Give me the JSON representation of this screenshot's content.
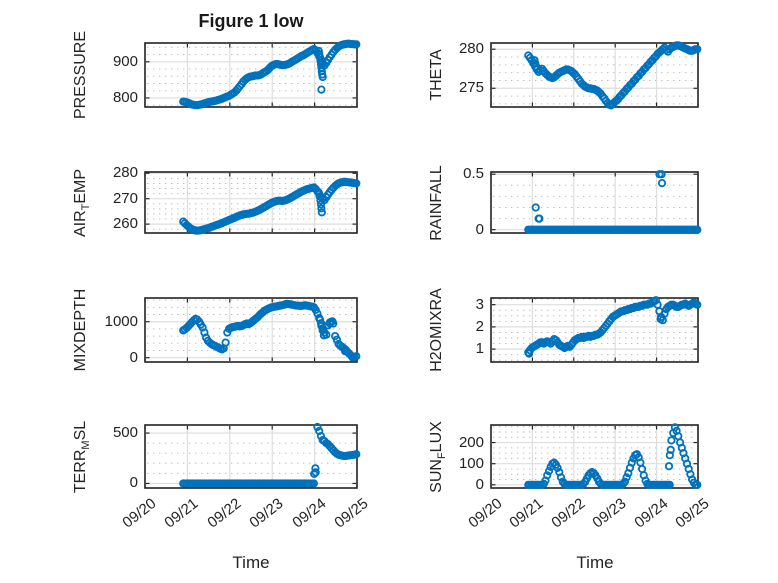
{
  "figure": {
    "title": "Figure 1 low",
    "xlabel": "Time",
    "background": "#ffffff",
    "marker_color": "#0072BD",
    "axis_color": "#222222",
    "tick_color": "#262626",
    "grid_color": "#dedede",
    "minor_grid_color": "#bdbdbd",
    "text_color": "#242424"
  },
  "time_axis": {
    "tick_labels": [
      "09/20",
      "09/21",
      "09/22",
      "09/23",
      "09/24",
      "09/25"
    ],
    "tick_values": [
      0,
      1,
      2,
      3,
      4,
      5
    ],
    "xlim": [
      0,
      5
    ],
    "start_day": 0.9,
    "step_day": 0.041667
  },
  "chart_data": [
    {
      "id": "pressure",
      "type": "scatter",
      "row": 0,
      "col": 0,
      "label_parts": [
        {
          "t": "PRESSURE"
        }
      ],
      "ylim": [
        775,
        952
      ],
      "yticks": [
        800,
        900
      ],
      "ytick_labels": [
        "800",
        "900"
      ],
      "minor_step": 20,
      "y": [
        790,
        789,
        788,
        786,
        784,
        782,
        781,
        780,
        780,
        781,
        782,
        783,
        785,
        786,
        788,
        789,
        790,
        791,
        792,
        793,
        795,
        796,
        798,
        800,
        802,
        804,
        806,
        809,
        812,
        815,
        820,
        826,
        832,
        838,
        845,
        850,
        854,
        857,
        859,
        860,
        861,
        862,
        862,
        863,
        865,
        868,
        871,
        874,
        878,
        883,
        888,
        891,
        893,
        894,
        893,
        892,
        891,
        891,
        892,
        893,
        895,
        898,
        901,
        904,
        907,
        910,
        913,
        916,
        918,
        921,
        924,
        927,
        930,
        933,
        935,
        932,
        925,
        915,
        905,
        896,
        890,
        897,
        905,
        913,
        920,
        927,
        933,
        938,
        942,
        945,
        947,
        948,
        949,
        950,
        950,
        949,
        949,
        948,
        948
      ],
      "extra_points": [
        [
          4.1,
          930
        ],
        [
          4.11,
          921
        ],
        [
          4.13,
          912
        ],
        [
          4.14,
          903
        ],
        [
          4.15,
          893
        ],
        [
          4.16,
          884
        ],
        [
          4.17,
          874
        ],
        [
          4.18,
          865
        ],
        [
          4.19,
          858
        ],
        [
          4.16,
          823
        ]
      ]
    },
    {
      "id": "theta",
      "type": "scatter",
      "row": 0,
      "col": 1,
      "label_parts": [
        {
          "t": "THETA"
        }
      ],
      "ylim": [
        272.6,
        280.8
      ],
      "yticks": [
        275,
        280
      ],
      "ytick_labels": [
        "275",
        "280"
      ],
      "minor_step": 1,
      "y": [
        279.2,
        278.9,
        278.6,
        278.2,
        277.8,
        277.4,
        277.1,
        277.3,
        277.5,
        277.2,
        276.9,
        276.7,
        276.5,
        276.4,
        276.3,
        276.4,
        276.6,
        276.8,
        277.0,
        277.1,
        277.2,
        277.3,
        277.4,
        277.4,
        277.3,
        277.2,
        277.0,
        276.8,
        276.5,
        276.2,
        275.9,
        275.6,
        275.4,
        275.2,
        275.1,
        275.0,
        275.0,
        274.9,
        274.9,
        274.8,
        274.7,
        274.5,
        274.3,
        274.0,
        273.7,
        273.4,
        273.1,
        272.9,
        272.8,
        273.0,
        273.2,
        273.4,
        273.6,
        273.9,
        274.1,
        274.4,
        274.6,
        274.9,
        275.1,
        275.4,
        275.6,
        275.9,
        276.1,
        276.4,
        276.6,
        276.9,
        277.1,
        277.4,
        277.6,
        277.9,
        278.1,
        278.4,
        278.6,
        278.9,
        279.1,
        279.4,
        279.6,
        279.8,
        280.0,
        280.2,
        279.9,
        279.7,
        280.0,
        280.2,
        280.3,
        280.4,
        280.5,
        280.5,
        280.4,
        280.3,
        280.2,
        280.1,
        280.0,
        279.9,
        279.8,
        279.8,
        279.9,
        280.0,
        280.0
      ],
      "extra_points": [
        [
          1.05,
          278.6
        ],
        [
          1.07,
          278.2
        ],
        [
          1.09,
          277.8
        ]
      ]
    },
    {
      "id": "airtemp",
      "type": "scatter",
      "row": 1,
      "col": 0,
      "label_parts": [
        {
          "t": "AIR"
        },
        {
          "t": "T",
          "sub": true
        },
        {
          "t": "EMP"
        }
      ],
      "ylim": [
        256.5,
        280.5
      ],
      "yticks": [
        260,
        270,
        280
      ],
      "ytick_labels": [
        "260",
        "270",
        "280"
      ],
      "minor_step": 2,
      "y": [
        261.0,
        260.3,
        259.6,
        259.0,
        258.4,
        258.0,
        257.7,
        257.5,
        257.4,
        257.5,
        257.6,
        257.8,
        258.0,
        258.2,
        258.4,
        258.6,
        258.9,
        259.1,
        259.4,
        259.6,
        259.9,
        260.1,
        260.4,
        260.7,
        261.0,
        261.3,
        261.6,
        261.9,
        262.2,
        262.5,
        262.8,
        263.1,
        263.4,
        263.6,
        263.8,
        263.9,
        264.0,
        264.1,
        264.2,
        264.4,
        264.6,
        264.9,
        265.2,
        265.5,
        265.9,
        266.3,
        266.7,
        267.1,
        267.5,
        267.9,
        268.3,
        268.6,
        268.9,
        269.1,
        269.2,
        269.2,
        269.1,
        269.2,
        269.4,
        269.7,
        270.0,
        270.4,
        270.8,
        271.2,
        271.6,
        272.0,
        272.4,
        272.8,
        273.1,
        273.4,
        273.7,
        273.9,
        274.1,
        274.3,
        274.4,
        273.8,
        272.9,
        271.8,
        270.8,
        270.0,
        269.5,
        270.5,
        271.6,
        272.6,
        273.5,
        274.3,
        275.0,
        275.6,
        276.0,
        276.3,
        276.5,
        276.6,
        276.6,
        276.5,
        276.4,
        276.3,
        276.2,
        276.1,
        276.0
      ],
      "extra_points": [
        [
          4.1,
          272.4
        ],
        [
          4.12,
          270.9
        ],
        [
          4.14,
          269.3
        ],
        [
          4.15,
          267.8
        ],
        [
          4.16,
          266.2
        ],
        [
          4.17,
          264.6
        ]
      ]
    },
    {
      "id": "rainfall",
      "type": "scatter",
      "row": 1,
      "col": 1,
      "label_parts": [
        {
          "t": "RAINFALL"
        }
      ],
      "ylim": [
        -0.03,
        0.52
      ],
      "yticks": [
        0,
        0.5
      ],
      "ytick_labels": [
        "0",
        "0.5"
      ],
      "minor_step": 0.1,
      "y": [
        0,
        0,
        0,
        0,
        0,
        0,
        0,
        0,
        0,
        0,
        0,
        0,
        0,
        0,
        0,
        0,
        0,
        0,
        0,
        0,
        0,
        0,
        0,
        0,
        0,
        0,
        0,
        0,
        0,
        0,
        0,
        0,
        0,
        0,
        0,
        0,
        0,
        0,
        0,
        0,
        0,
        0,
        0,
        0,
        0,
        0,
        0,
        0,
        0,
        0,
        0,
        0,
        0,
        0,
        0,
        0,
        0,
        0,
        0,
        0,
        0,
        0,
        0,
        0,
        0,
        0,
        0,
        0,
        0,
        0,
        0,
        0,
        0,
        0,
        0,
        0,
        0,
        0,
        0,
        0,
        0,
        0,
        0,
        0,
        0,
        0,
        0,
        0,
        0,
        0,
        0,
        0,
        0,
        0,
        0,
        0,
        0,
        0,
        0
      ],
      "extra_points": [
        [
          1.08,
          0.2
        ],
        [
          1.15,
          0.1
        ],
        [
          1.17,
          0.1
        ],
        [
          4.07,
          0.5
        ],
        [
          4.12,
          0.5
        ],
        [
          4.13,
          0.42
        ]
      ]
    },
    {
      "id": "mixdepth",
      "type": "scatter",
      "row": 2,
      "col": 0,
      "label_parts": [
        {
          "t": "MIXDEPTH"
        }
      ],
      "ylim": [
        -120,
        1660
      ],
      "yticks": [
        0,
        1000
      ],
      "ytick_labels": [
        "0",
        "1000"
      ],
      "minor_step": 200,
      "y": [
        760,
        790,
        830,
        880,
        930,
        990,
        1040,
        1080,
        1060,
        1000,
        920,
        840,
        700,
        560,
        470,
        420,
        380,
        350,
        330,
        300,
        280,
        250,
        230,
        260,
        420,
        700,
        800,
        830,
        850,
        860,
        870,
        880,
        870,
        880,
        900,
        930,
        950,
        930,
        960,
        1000,
        1040,
        1080,
        1120,
        1170,
        1220,
        1260,
        1300,
        1330,
        1360,
        1380,
        1400,
        1410,
        1420,
        1430,
        1440,
        1450,
        1460,
        1470,
        1490,
        1500,
        1490,
        1480,
        1470,
        1460,
        1450,
        1450,
        1440,
        1440,
        1450,
        1460,
        1450,
        1440,
        1430,
        1420,
        1400,
        1330,
        1230,
        1100,
        960,
        820,
        700,
        640,
        900,
        950,
        1000,
        950,
        600,
        500,
        380,
        330,
        300,
        260,
        220,
        160,
        110,
        60,
        20,
        10,
        40
      ],
      "extra_points": [
        [
          4.13,
          1050
        ],
        [
          4.16,
          880
        ],
        [
          4.19,
          760
        ],
        [
          4.22,
          620
        ],
        [
          4.36,
          980
        ],
        [
          4.42,
          1010
        ],
        [
          4.72,
          180
        ],
        [
          4.9,
          0
        ]
      ]
    },
    {
      "id": "h2omixra",
      "type": "scatter",
      "row": 2,
      "col": 1,
      "label_parts": [
        {
          "t": "H2OMIXRA"
        }
      ],
      "ylim": [
        0.42,
        3.3
      ],
      "yticks": [
        1,
        2,
        3
      ],
      "ytick_labels": [
        "1",
        "2",
        "3"
      ],
      "minor_step": 0.25,
      "y": [
        0.85,
        0.95,
        1.05,
        1.1,
        1.15,
        1.2,
        1.25,
        1.3,
        1.3,
        1.25,
        1.3,
        1.35,
        1.3,
        1.25,
        1.35,
        1.45,
        1.4,
        1.3,
        1.2,
        1.15,
        1.1,
        1.05,
        1.1,
        1.15,
        1.1,
        1.2,
        1.3,
        1.4,
        1.45,
        1.5,
        1.5,
        1.55,
        1.5,
        1.55,
        1.55,
        1.6,
        1.55,
        1.6,
        1.6,
        1.65,
        1.65,
        1.7,
        1.75,
        1.85,
        1.95,
        2.05,
        2.15,
        2.25,
        2.35,
        2.45,
        2.5,
        2.55,
        2.6,
        2.65,
        2.7,
        2.7,
        2.75,
        2.75,
        2.8,
        2.8,
        2.85,
        2.85,
        2.9,
        2.9,
        2.9,
        2.95,
        2.95,
        3.0,
        3.0,
        3.0,
        3.05,
        3.05,
        3.1,
        3.15,
        3.2,
        3.0,
        2.7,
        2.45,
        2.3,
        2.6,
        2.8,
        2.9,
        2.95,
        3.0,
        3.0,
        2.95,
        2.9,
        2.9,
        2.95,
        3.0,
        3.0,
        3.05,
        3.0,
        2.95,
        3.0,
        3.05,
        3.1,
        3.05,
        3.0
      ],
      "extra_points": [
        [
          0.92,
          0.8
        ],
        [
          4.1,
          2.35
        ]
      ]
    },
    {
      "id": "terrmsl",
      "type": "scatter",
      "row": 3,
      "col": 0,
      "label_parts": [
        {
          "t": "TERR"
        },
        {
          "t": "M",
          "sub": true
        },
        {
          "t": "SL"
        }
      ],
      "ylim": [
        -45,
        580
      ],
      "yticks": [
        0,
        500
      ],
      "ytick_labels": [
        "0",
        "500"
      ],
      "minor_step": 100,
      "y": [
        0,
        0,
        0,
        0,
        0,
        0,
        0,
        0,
        0,
        0,
        0,
        0,
        0,
        0,
        0,
        0,
        0,
        0,
        0,
        0,
        0,
        0,
        0,
        0,
        0,
        0,
        0,
        0,
        0,
        0,
        0,
        0,
        0,
        0,
        0,
        0,
        0,
        0,
        0,
        0,
        0,
        0,
        0,
        0,
        0,
        0,
        0,
        0,
        0,
        0,
        0,
        0,
        0,
        0,
        0,
        0,
        0,
        0,
        0,
        0,
        0,
        0,
        0,
        0,
        0,
        0,
        0,
        0,
        0,
        0,
        0,
        0,
        0,
        0,
        0,
        110,
        560,
        520,
        470,
        430,
        420,
        400,
        390,
        370,
        350,
        330,
        310,
        295,
        285,
        280,
        275,
        272,
        272,
        275,
        278,
        280,
        282,
        285,
        290
      ],
      "extra_points": [
        [
          3.99,
          95
        ],
        [
          4.02,
          150
        ]
      ]
    },
    {
      "id": "sunflux",
      "type": "scatter",
      "row": 3,
      "col": 1,
      "label_parts": [
        {
          "t": "SUN"
        },
        {
          "t": "F",
          "sub": true
        },
        {
          "t": "LUX"
        }
      ],
      "ylim": [
        -15,
        283
      ],
      "yticks": [
        0,
        100,
        200
      ],
      "ytick_labels": [
        "0",
        "100",
        "200"
      ],
      "minor_step": 25,
      "y": [
        0,
        0,
        0,
        0,
        0,
        0,
        0,
        0,
        0,
        5,
        20,
        45,
        65,
        85,
        100,
        105,
        95,
        80,
        60,
        35,
        15,
        5,
        0,
        0,
        0,
        0,
        0,
        0,
        0,
        0,
        0,
        0,
        5,
        15,
        30,
        45,
        55,
        60,
        55,
        45,
        30,
        15,
        5,
        0,
        0,
        0,
        0,
        0,
        0,
        0,
        0,
        0,
        0,
        0,
        0,
        5,
        15,
        35,
        55,
        80,
        105,
        125,
        140,
        145,
        130,
        105,
        75,
        45,
        20,
        5,
        0,
        0,
        0,
        0,
        0,
        0,
        0,
        0,
        0,
        0,
        0,
        0,
        0,
        210,
        245,
        272,
        255,
        230,
        200,
        175,
        150,
        125,
        100,
        75,
        50,
        25,
        10,
        0,
        0
      ],
      "extra_points": [
        [
          4.3,
          88
        ],
        [
          4.32,
          140
        ],
        [
          4.34,
          165
        ]
      ]
    }
  ]
}
